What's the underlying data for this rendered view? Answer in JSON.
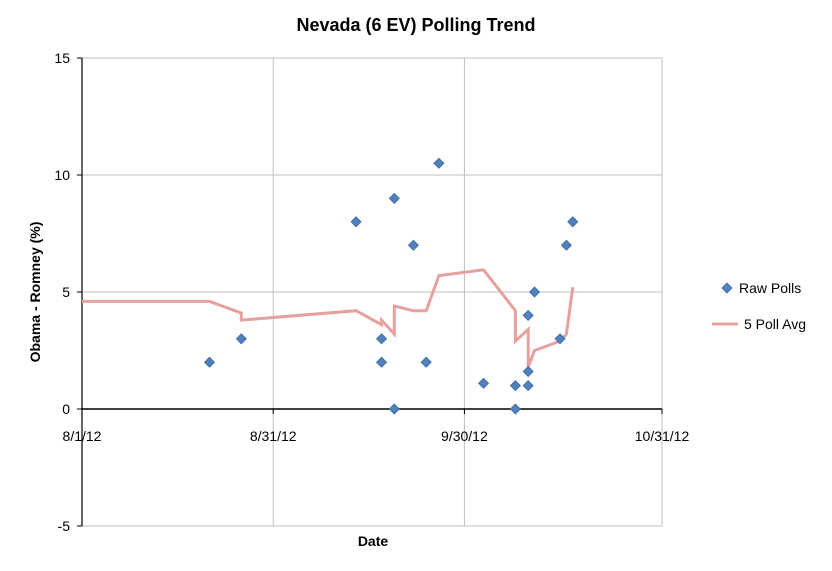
{
  "chart_data": {
    "type": "scatter",
    "title": "Nevada (6 EV) Polling Trend",
    "xlabel": "Date",
    "ylabel": "Obama - Romney (%)",
    "xlim": [
      "2012-08-01",
      "2012-10-31"
    ],
    "ylim": [
      -5,
      15
    ],
    "x_ticks": [
      "8/1/12",
      "8/31/12",
      "9/30/12",
      "10/31/12"
    ],
    "y_ticks": [
      "-5",
      "0",
      "5",
      "10",
      "15"
    ],
    "grid": true,
    "legend_position": "right",
    "series": [
      {
        "name": "Raw Polls",
        "kind": "scatter",
        "marker": "diamond",
        "color": "#4f81bd",
        "points": [
          {
            "x": "2012-08-21",
            "y": 2
          },
          {
            "x": "2012-08-26",
            "y": 3
          },
          {
            "x": "2012-09-13",
            "y": 8
          },
          {
            "x": "2012-09-17",
            "y": 3
          },
          {
            "x": "2012-09-17",
            "y": 2
          },
          {
            "x": "2012-09-19",
            "y": 9
          },
          {
            "x": "2012-09-19",
            "y": 0
          },
          {
            "x": "2012-09-22",
            "y": 7
          },
          {
            "x": "2012-09-24",
            "y": 2
          },
          {
            "x": "2012-09-26",
            "y": 10.5
          },
          {
            "x": "2012-10-03",
            "y": 1.1
          },
          {
            "x": "2012-10-08",
            "y": 1
          },
          {
            "x": "2012-10-08",
            "y": 0
          },
          {
            "x": "2012-10-10",
            "y": 4
          },
          {
            "x": "2012-10-10",
            "y": 1.6
          },
          {
            "x": "2012-10-10",
            "y": 1
          },
          {
            "x": "2012-10-11",
            "y": 5
          },
          {
            "x": "2012-10-15",
            "y": 3
          },
          {
            "x": "2012-10-16",
            "y": 7
          },
          {
            "x": "2012-10-17",
            "y": 8
          }
        ]
      },
      {
        "name": "5 Poll Avg",
        "kind": "line",
        "color": "#e6a09e",
        "points": [
          {
            "x": "2012-08-01",
            "y": 4.6
          },
          {
            "x": "2012-08-21",
            "y": 4.6
          },
          {
            "x": "2012-08-26",
            "y": 4.1
          },
          {
            "x": "2012-08-26",
            "y": 3.8
          },
          {
            "x": "2012-09-13",
            "y": 4.2
          },
          {
            "x": "2012-09-17",
            "y": 3.6
          },
          {
            "x": "2012-09-17",
            "y": 3.8
          },
          {
            "x": "2012-09-19",
            "y": 3.2
          },
          {
            "x": "2012-09-19",
            "y": 4.4
          },
          {
            "x": "2012-09-22",
            "y": 4.2
          },
          {
            "x": "2012-09-24",
            "y": 4.2
          },
          {
            "x": "2012-09-26",
            "y": 5.7
          },
          {
            "x": "2012-10-03",
            "y": 5.95
          },
          {
            "x": "2012-10-08",
            "y": 4.2
          },
          {
            "x": "2012-10-08",
            "y": 2.9
          },
          {
            "x": "2012-10-10",
            "y": 3.4
          },
          {
            "x": "2012-10-10",
            "y": 1.8
          },
          {
            "x": "2012-10-11",
            "y": 2.5
          },
          {
            "x": "2012-10-15",
            "y": 2.9
          },
          {
            "x": "2012-10-16",
            "y": 3.2
          },
          {
            "x": "2012-10-17",
            "y": 5.2
          }
        ]
      }
    ]
  }
}
